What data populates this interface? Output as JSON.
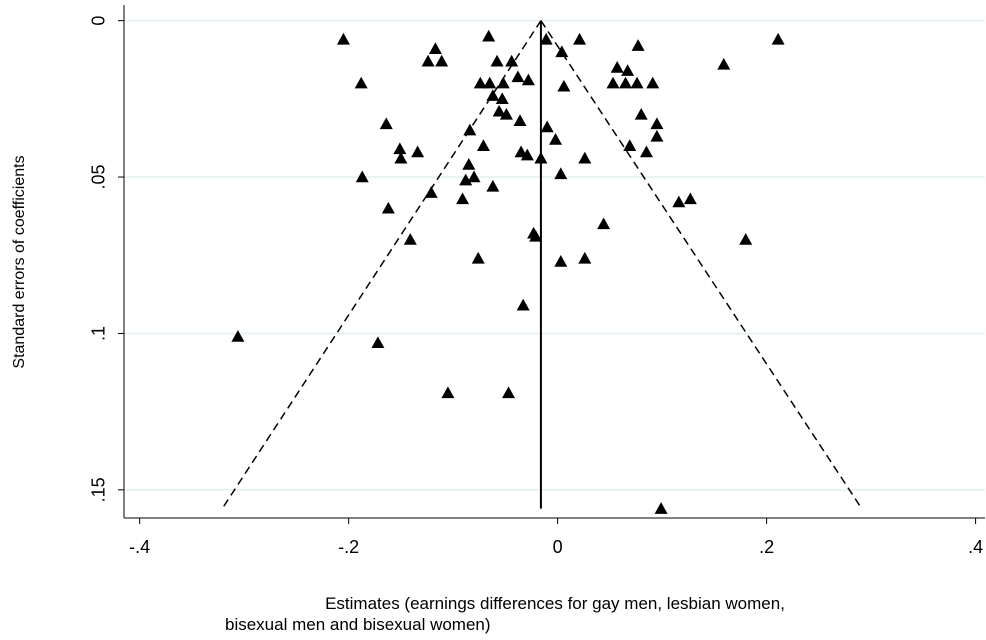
{
  "chart_data": {
    "type": "scatter",
    "y_label": "Standard errors of coefficients",
    "x_label": [
      "Estimates (earnings differences for gay men, lesbian women,",
      "bisexual men and bisexual women)"
    ],
    "marker": "triangle",
    "color": "#000000",
    "grid": true,
    "xlim": [
      -0.415,
      0.409
    ],
    "ylim": [
      0.159,
      -0.005
    ],
    "xticks": [
      {
        "value": -0.4,
        "label": "-.4"
      },
      {
        "value": -0.2,
        "label": "-.2"
      },
      0,
      {
        "value": 0.2,
        "label": ".2"
      },
      {
        "value": 0.4,
        "label": ".4"
      }
    ],
    "yticks": [
      0,
      {
        "value": 0.05,
        "label": ".05"
      },
      {
        "value": 0.1,
        "label": ".1"
      },
      {
        "value": 0.15,
        "label": ".15"
      }
    ],
    "x": [
      -0.205,
      -0.066,
      -0.011,
      0.021,
      0.211,
      -0.117,
      0.004,
      0.077,
      -0.124,
      -0.111,
      -0.058,
      -0.044,
      0.057,
      0.067,
      0.159,
      -0.188,
      -0.074,
      -0.065,
      -0.052,
      -0.038,
      -0.028,
      0.006,
      0.053,
      0.065,
      0.076,
      0.091,
      -0.062,
      -0.053,
      -0.056,
      -0.049,
      0.08,
      -0.164,
      -0.036,
      -0.01,
      0.095,
      0.095,
      -0.084,
      -0.002,
      -0.071,
      0.069,
      -0.151,
      -0.134,
      -0.15,
      -0.035,
      -0.029,
      -0.016,
      0.026,
      0.085,
      -0.085,
      -0.08,
      -0.088,
      -0.187,
      0.003,
      -0.062,
      -0.121,
      -0.091,
      0.116,
      0.127,
      -0.162,
      0.044,
      -0.023,
      -0.021,
      -0.141,
      0.18,
      -0.076,
      0.026,
      0.003,
      -0.033,
      -0.306,
      -0.172,
      -0.105,
      -0.047,
      0.099
    ],
    "values": [
      0.006,
      0.005,
      0.006,
      0.006,
      0.006,
      0.009,
      0.01,
      0.008,
      0.013,
      0.013,
      0.013,
      0.013,
      0.015,
      0.016,
      0.014,
      0.02,
      0.02,
      0.02,
      0.02,
      0.018,
      0.019,
      0.021,
      0.02,
      0.02,
      0.02,
      0.02,
      0.024,
      0.025,
      0.029,
      0.03,
      0.03,
      0.033,
      0.032,
      0.034,
      0.033,
      0.037,
      0.035,
      0.038,
      0.04,
      0.04,
      0.041,
      0.042,
      0.044,
      0.042,
      0.043,
      0.044,
      0.044,
      0.042,
      0.046,
      0.05,
      0.051,
      0.05,
      0.049,
      0.053,
      0.055,
      0.057,
      0.058,
      0.057,
      0.06,
      0.065,
      0.068,
      0.069,
      0.07,
      0.07,
      0.076,
      0.076,
      0.077,
      0.091,
      0.101,
      0.103,
      0.119,
      0.119,
      0.156
    ],
    "funnel": {
      "center": -0.016,
      "lower_x": -0.321,
      "upper_x": 0.291,
      "y_end": 0.156
    }
  }
}
